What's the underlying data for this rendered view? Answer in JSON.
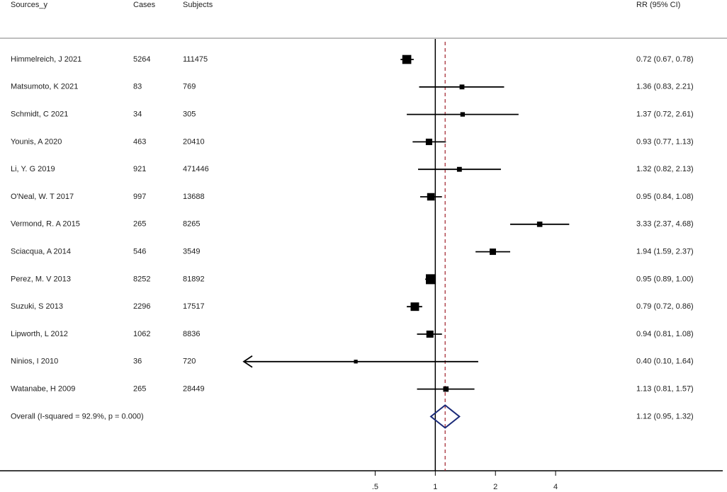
{
  "chart_data": {
    "type": "forest",
    "headers": {
      "source": "Sources_y",
      "cases": "Cases",
      "subjects": "Subjects",
      "estimate": "RR (95% CI)"
    },
    "labels": [
      "Himmelreich, J 2021",
      "Matsumoto, K 2021",
      "Schmidt, C 2021",
      "Younis, A 2020",
      "Li, Y. G 2019",
      "O'Neal, W. T 2017",
      "Vermond, R. A 2015",
      "Sciacqua, A 2014",
      "Perez, M. V 2013",
      "Suzuki, S 2013",
      "Lipworth, L 2012",
      "Ninios, I 2010",
      "Watanabe, H 2009"
    ],
    "cases": [
      5264,
      83,
      34,
      463,
      921,
      997,
      265,
      546,
      8252,
      2296,
      1062,
      36,
      265
    ],
    "subjects": [
      111475,
      769,
      305,
      20410,
      471446,
      13688,
      8265,
      3549,
      81892,
      17517,
      8836,
      720,
      28449
    ],
    "values": [
      0.72,
      1.36,
      1.37,
      0.93,
      1.32,
      0.95,
      3.33,
      1.94,
      0.95,
      0.79,
      0.94,
      0.4,
      1.13
    ],
    "lower": [
      0.67,
      0.83,
      0.72,
      0.77,
      0.82,
      0.84,
      2.37,
      1.59,
      0.89,
      0.72,
      0.81,
      0.1,
      0.81
    ],
    "upper": [
      0.78,
      2.21,
      2.61,
      1.13,
      2.13,
      1.08,
      4.68,
      2.37,
      1.0,
      0.86,
      1.08,
      1.64,
      1.57
    ],
    "value_labels": [
      "0.72 (0.67, 0.78)",
      "1.36 (0.83, 2.21)",
      "1.37 (0.72, 2.61)",
      "0.93 (0.77, 1.13)",
      "1.32 (0.82, 2.13)",
      "0.95 (0.84, 1.08)",
      "3.33 (2.37, 4.68)",
      "1.94 (1.59, 2.37)",
      "0.95 (0.89, 1.00)",
      "0.79 (0.72, 0.86)",
      "0.94 (0.81, 1.08)",
      "0.40 (0.10, 1.64)",
      "1.13 (0.81, 1.57)"
    ],
    "overall": {
      "label": "Overall  (I-squared = 92.9%, p = 0.000)",
      "value": 1.12,
      "lower": 0.95,
      "upper": 1.32,
      "value_label": "1.12 (0.95, 1.32)"
    },
    "null_value": 1,
    "xlim": [
      0.11,
      8
    ],
    "xticks": [
      {
        "value": 0.5,
        "label": ".5"
      },
      1,
      2,
      4
    ],
    "log_scale": true,
    "box_color": "#000000",
    "diamond_color": "#1a2a78",
    "overall_line_color": "#a0202a"
  }
}
